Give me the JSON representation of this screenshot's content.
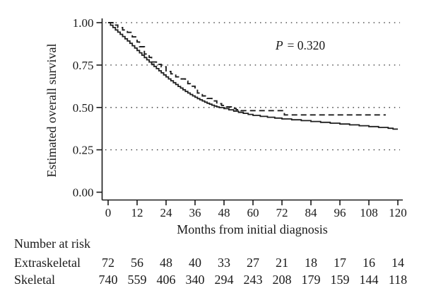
{
  "figure": {
    "background": "#ffffff",
    "text_color": "#1a1a1a",
    "line_color": "#1f1f1f"
  },
  "chart_data": {
    "type": "line",
    "subtype": "kaplan-meier-step",
    "title": "",
    "xlabel": "Months from initial diagnosis",
    "ylabel": "Estimated overall survival",
    "xlim": [
      0,
      120
    ],
    "ylim": [
      0.0,
      1.0
    ],
    "xticks": [
      0,
      12,
      24,
      36,
      48,
      60,
      72,
      84,
      96,
      108,
      120
    ],
    "yticks": [
      0,
      0.25,
      0.5,
      0.75,
      1
    ],
    "ytick_labels": [
      "0.00",
      "0.25",
      "0.50",
      "0.75",
      "1.00"
    ],
    "grid": {
      "style": "dotted",
      "horizontal_at": [
        0.25,
        0.5,
        0.75,
        1.0
      ]
    },
    "legend_position": "none",
    "annotation": {
      "p_symbol": "P",
      "p_rest": "= 0.320"
    },
    "series": [
      {
        "name": "Skeletal",
        "style": "solid",
        "points": [
          [
            0,
            1.0
          ],
          [
            1,
            0.985
          ],
          [
            2,
            0.971
          ],
          [
            3,
            0.957
          ],
          [
            4,
            0.944
          ],
          [
            5,
            0.931
          ],
          [
            6,
            0.918
          ],
          [
            7,
            0.905
          ],
          [
            8,
            0.892
          ],
          [
            9,
            0.878
          ],
          [
            10,
            0.864
          ],
          [
            11,
            0.85
          ],
          [
            12,
            0.836
          ],
          [
            13,
            0.822
          ],
          [
            14,
            0.808
          ],
          [
            15,
            0.794
          ],
          [
            16,
            0.781
          ],
          [
            17,
            0.768
          ],
          [
            18,
            0.755
          ],
          [
            19,
            0.742
          ],
          [
            20,
            0.729
          ],
          [
            21,
            0.716
          ],
          [
            22,
            0.704
          ],
          [
            23,
            0.692
          ],
          [
            24,
            0.68
          ],
          [
            25,
            0.668
          ],
          [
            26,
            0.657
          ],
          [
            27,
            0.646
          ],
          [
            28,
            0.635
          ],
          [
            29,
            0.624
          ],
          [
            30,
            0.614
          ],
          [
            31,
            0.604
          ],
          [
            32,
            0.594
          ],
          [
            33,
            0.585
          ],
          [
            34,
            0.576
          ],
          [
            35,
            0.568
          ],
          [
            36,
            0.56
          ],
          [
            37,
            0.552
          ],
          [
            38,
            0.545
          ],
          [
            39,
            0.538
          ],
          [
            40,
            0.531
          ],
          [
            41,
            0.525
          ],
          [
            42,
            0.519
          ],
          [
            43,
            0.513
          ],
          [
            44,
            0.508
          ],
          [
            45,
            0.503
          ],
          [
            46,
            0.499
          ],
          [
            48,
            0.493
          ],
          [
            50,
            0.486
          ],
          [
            52,
            0.478
          ],
          [
            54,
            0.471
          ],
          [
            56,
            0.465
          ],
          [
            58,
            0.459
          ],
          [
            60,
            0.453
          ],
          [
            63,
            0.447
          ],
          [
            66,
            0.442
          ],
          [
            69,
            0.437
          ],
          [
            72,
            0.432
          ],
          [
            76,
            0.427
          ],
          [
            80,
            0.422
          ],
          [
            84,
            0.417
          ],
          [
            88,
            0.412
          ],
          [
            92,
            0.407
          ],
          [
            96,
            0.402
          ],
          [
            100,
            0.397
          ],
          [
            104,
            0.392
          ],
          [
            108,
            0.387
          ],
          [
            112,
            0.382
          ],
          [
            116,
            0.377
          ],
          [
            118,
            0.372
          ],
          [
            120,
            0.372
          ]
        ]
      },
      {
        "name": "Extraskeletal",
        "style": "dashed",
        "points": [
          [
            0,
            1.0
          ],
          [
            2,
            0.986
          ],
          [
            4,
            0.971
          ],
          [
            6,
            0.957
          ],
          [
            8,
            0.943
          ],
          [
            10,
            0.916
          ],
          [
            12,
            0.886
          ],
          [
            13,
            0.858
          ],
          [
            15,
            0.815
          ],
          [
            17,
            0.795
          ],
          [
            18,
            0.768
          ],
          [
            20,
            0.754
          ],
          [
            22,
            0.74
          ],
          [
            24,
            0.712
          ],
          [
            26,
            0.698
          ],
          [
            28,
            0.68
          ],
          [
            30,
            0.668
          ],
          [
            32,
            0.655
          ],
          [
            33,
            0.64
          ],
          [
            34,
            0.625
          ],
          [
            36,
            0.605
          ],
          [
            37,
            0.585
          ],
          [
            39,
            0.568
          ],
          [
            41,
            0.553
          ],
          [
            43,
            0.538
          ],
          [
            45,
            0.522
          ],
          [
            47,
            0.512
          ],
          [
            49,
            0.503
          ],
          [
            51,
            0.494
          ],
          [
            53,
            0.487
          ],
          [
            55,
            0.481
          ],
          [
            73,
            0.456
          ],
          [
            115,
            0.456
          ]
        ]
      }
    ]
  },
  "risk_table": {
    "heading": "Number at risk",
    "timepoints": [
      0,
      12,
      24,
      36,
      48,
      60,
      72,
      84,
      96,
      108,
      120
    ],
    "rows": [
      {
        "label": "Extraskeletal",
        "values": [
          72,
          56,
          48,
          40,
          33,
          27,
          21,
          18,
          17,
          16,
          14
        ]
      },
      {
        "label": "Skeletal",
        "values": [
          740,
          559,
          406,
          340,
          294,
          243,
          208,
          179,
          159,
          144,
          118
        ]
      }
    ]
  }
}
